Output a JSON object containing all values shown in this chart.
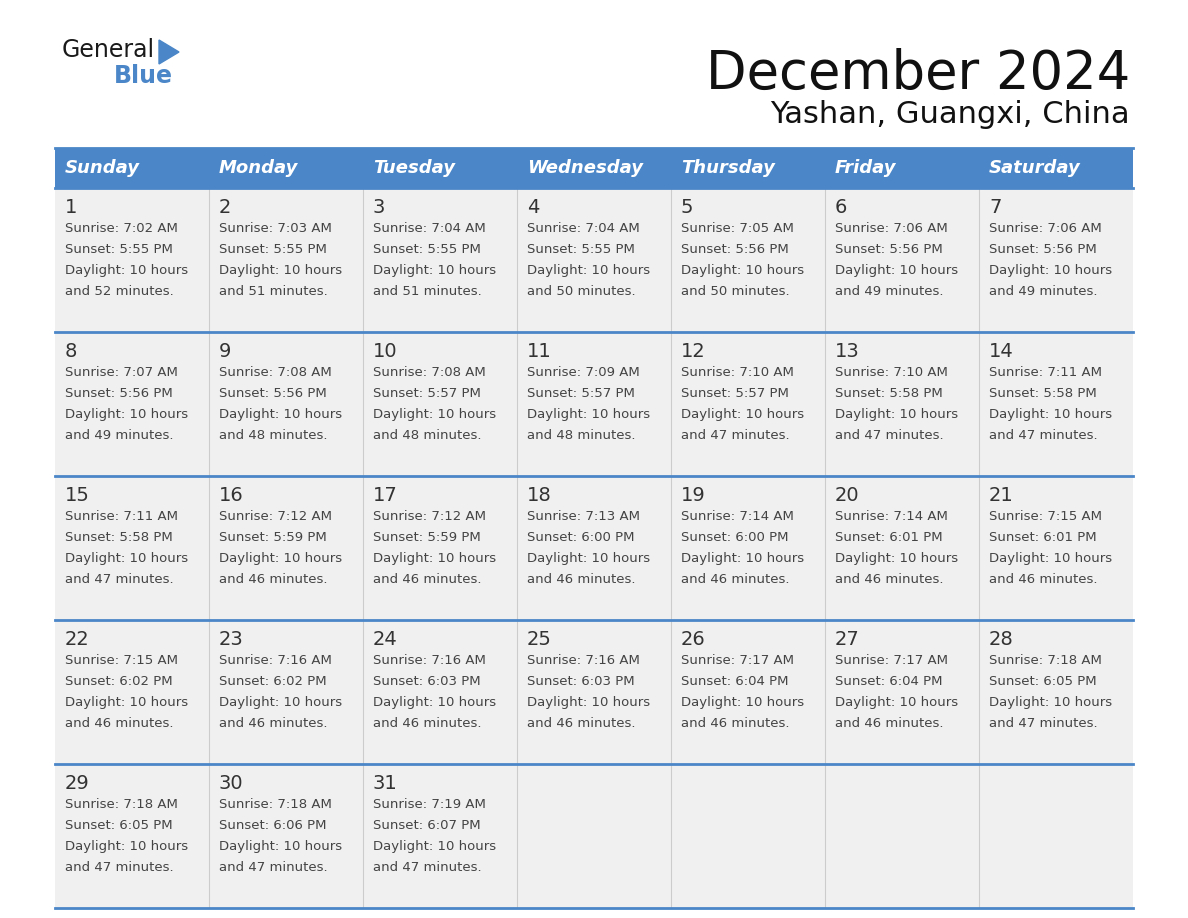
{
  "title": "December 2024",
  "subtitle": "Yashan, Guangxi, China",
  "header_color": "#4a86c8",
  "header_text_color": "#ffffff",
  "cell_bg": "#f0f0f0",
  "border_color": "#4a86c8",
  "days_of_week": [
    "Sunday",
    "Monday",
    "Tuesday",
    "Wednesday",
    "Thursday",
    "Friday",
    "Saturday"
  ],
  "weeks": [
    [
      {
        "day": 1,
        "sunrise": "7:02 AM",
        "sunset": "5:55 PM",
        "daylight_hours": 10,
        "daylight_minutes": 52
      },
      {
        "day": 2,
        "sunrise": "7:03 AM",
        "sunset": "5:55 PM",
        "daylight_hours": 10,
        "daylight_minutes": 51
      },
      {
        "day": 3,
        "sunrise": "7:04 AM",
        "sunset": "5:55 PM",
        "daylight_hours": 10,
        "daylight_minutes": 51
      },
      {
        "day": 4,
        "sunrise": "7:04 AM",
        "sunset": "5:55 PM",
        "daylight_hours": 10,
        "daylight_minutes": 50
      },
      {
        "day": 5,
        "sunrise": "7:05 AM",
        "sunset": "5:56 PM",
        "daylight_hours": 10,
        "daylight_minutes": 50
      },
      {
        "day": 6,
        "sunrise": "7:06 AM",
        "sunset": "5:56 PM",
        "daylight_hours": 10,
        "daylight_minutes": 49
      },
      {
        "day": 7,
        "sunrise": "7:06 AM",
        "sunset": "5:56 PM",
        "daylight_hours": 10,
        "daylight_minutes": 49
      }
    ],
    [
      {
        "day": 8,
        "sunrise": "7:07 AM",
        "sunset": "5:56 PM",
        "daylight_hours": 10,
        "daylight_minutes": 49
      },
      {
        "day": 9,
        "sunrise": "7:08 AM",
        "sunset": "5:56 PM",
        "daylight_hours": 10,
        "daylight_minutes": 48
      },
      {
        "day": 10,
        "sunrise": "7:08 AM",
        "sunset": "5:57 PM",
        "daylight_hours": 10,
        "daylight_minutes": 48
      },
      {
        "day": 11,
        "sunrise": "7:09 AM",
        "sunset": "5:57 PM",
        "daylight_hours": 10,
        "daylight_minutes": 48
      },
      {
        "day": 12,
        "sunrise": "7:10 AM",
        "sunset": "5:57 PM",
        "daylight_hours": 10,
        "daylight_minutes": 47
      },
      {
        "day": 13,
        "sunrise": "7:10 AM",
        "sunset": "5:58 PM",
        "daylight_hours": 10,
        "daylight_minutes": 47
      },
      {
        "day": 14,
        "sunrise": "7:11 AM",
        "sunset": "5:58 PM",
        "daylight_hours": 10,
        "daylight_minutes": 47
      }
    ],
    [
      {
        "day": 15,
        "sunrise": "7:11 AM",
        "sunset": "5:58 PM",
        "daylight_hours": 10,
        "daylight_minutes": 47
      },
      {
        "day": 16,
        "sunrise": "7:12 AM",
        "sunset": "5:59 PM",
        "daylight_hours": 10,
        "daylight_minutes": 46
      },
      {
        "day": 17,
        "sunrise": "7:12 AM",
        "sunset": "5:59 PM",
        "daylight_hours": 10,
        "daylight_minutes": 46
      },
      {
        "day": 18,
        "sunrise": "7:13 AM",
        "sunset": "6:00 PM",
        "daylight_hours": 10,
        "daylight_minutes": 46
      },
      {
        "day": 19,
        "sunrise": "7:14 AM",
        "sunset": "6:00 PM",
        "daylight_hours": 10,
        "daylight_minutes": 46
      },
      {
        "day": 20,
        "sunrise": "7:14 AM",
        "sunset": "6:01 PM",
        "daylight_hours": 10,
        "daylight_minutes": 46
      },
      {
        "day": 21,
        "sunrise": "7:15 AM",
        "sunset": "6:01 PM",
        "daylight_hours": 10,
        "daylight_minutes": 46
      }
    ],
    [
      {
        "day": 22,
        "sunrise": "7:15 AM",
        "sunset": "6:02 PM",
        "daylight_hours": 10,
        "daylight_minutes": 46
      },
      {
        "day": 23,
        "sunrise": "7:16 AM",
        "sunset": "6:02 PM",
        "daylight_hours": 10,
        "daylight_minutes": 46
      },
      {
        "day": 24,
        "sunrise": "7:16 AM",
        "sunset": "6:03 PM",
        "daylight_hours": 10,
        "daylight_minutes": 46
      },
      {
        "day": 25,
        "sunrise": "7:16 AM",
        "sunset": "6:03 PM",
        "daylight_hours": 10,
        "daylight_minutes": 46
      },
      {
        "day": 26,
        "sunrise": "7:17 AM",
        "sunset": "6:04 PM",
        "daylight_hours": 10,
        "daylight_minutes": 46
      },
      {
        "day": 27,
        "sunrise": "7:17 AM",
        "sunset": "6:04 PM",
        "daylight_hours": 10,
        "daylight_minutes": 46
      },
      {
        "day": 28,
        "sunrise": "7:18 AM",
        "sunset": "6:05 PM",
        "daylight_hours": 10,
        "daylight_minutes": 47
      }
    ],
    [
      {
        "day": 29,
        "sunrise": "7:18 AM",
        "sunset": "6:05 PM",
        "daylight_hours": 10,
        "daylight_minutes": 47
      },
      {
        "day": 30,
        "sunrise": "7:18 AM",
        "sunset": "6:06 PM",
        "daylight_hours": 10,
        "daylight_minutes": 47
      },
      {
        "day": 31,
        "sunrise": "7:19 AM",
        "sunset": "6:07 PM",
        "daylight_hours": 10,
        "daylight_minutes": 47
      },
      null,
      null,
      null,
      null
    ]
  ],
  "logo_text_general": "General",
  "logo_text_blue": "Blue",
  "logo_color_general": "#1a1a1a",
  "logo_color_blue": "#4a86c8",
  "logo_triangle_color": "#4a86c8",
  "title_fontsize": 38,
  "subtitle_fontsize": 22,
  "header_fontsize": 13,
  "day_num_fontsize": 14,
  "cell_fontsize": 9.5
}
